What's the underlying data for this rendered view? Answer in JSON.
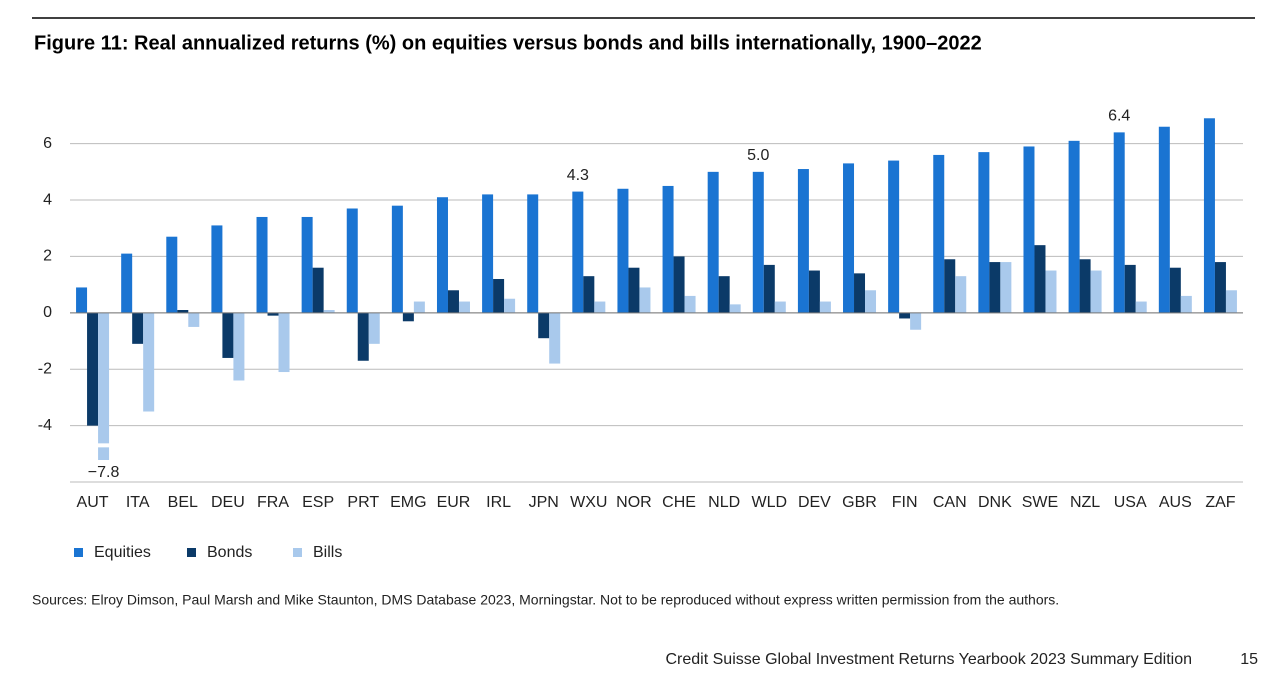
{
  "chart_data": {
    "type": "bar",
    "title": "Figure 11: Real annualized returns (%) on equities versus bonds and bills internationally, 1900–2022",
    "categories": [
      "AUT",
      "ITA",
      "BEL",
      "DEU",
      "FRA",
      "ESP",
      "PRT",
      "EMG",
      "EUR",
      "IRL",
      "JPN",
      "WXU",
      "NOR",
      "CHE",
      "NLD",
      "WLD",
      "DEV",
      "GBR",
      "FIN",
      "CAN",
      "DNK",
      "SWE",
      "NZL",
      "USA",
      "AUS",
      "ZAF"
    ],
    "series": [
      {
        "name": "Equities",
        "color": "#1a74d2",
        "values": [
          0.9,
          2.1,
          2.7,
          3.1,
          3.4,
          3.4,
          3.7,
          3.8,
          4.1,
          4.2,
          4.2,
          4.3,
          4.4,
          4.5,
          5.0,
          5.0,
          5.1,
          5.3,
          5.4,
          5.6,
          5.7,
          5.9,
          6.1,
          6.4,
          6.6,
          6.9
        ],
        "value_labels": [
          null,
          null,
          null,
          null,
          null,
          null,
          null,
          null,
          null,
          null,
          null,
          "4.3",
          null,
          null,
          null,
          "5.0",
          null,
          null,
          null,
          null,
          null,
          null,
          null,
          "6.4",
          null,
          null
        ]
      },
      {
        "name": "Bonds",
        "color": "#0b3a68",
        "values": [
          -4.0,
          -1.1,
          0.1,
          -1.6,
          -0.1,
          1.6,
          -1.7,
          -0.3,
          0.8,
          1.2,
          -0.9,
          1.3,
          1.6,
          2.0,
          1.3,
          1.7,
          1.5,
          1.4,
          -0.2,
          1.9,
          1.8,
          2.4,
          1.9,
          1.7,
          1.6,
          1.8
        ]
      },
      {
        "name": "Bills",
        "color": "#a9c9ec",
        "values": [
          -7.8,
          -3.5,
          -0.5,
          -2.4,
          -2.1,
          0.1,
          -1.1,
          0.4,
          0.4,
          0.5,
          -1.8,
          0.4,
          0.9,
          0.6,
          0.3,
          0.4,
          0.4,
          0.8,
          -0.6,
          1.3,
          1.8,
          1.5,
          1.5,
          0.4,
          0.6,
          0.8
        ],
        "value_labels": [
          "−7.8",
          null,
          null,
          null,
          null,
          null,
          null,
          null,
          null,
          null,
          null,
          null,
          null,
          null,
          null,
          null,
          null,
          null,
          null,
          null,
          null,
          null,
          null,
          null,
          null,
          null
        ]
      }
    ],
    "ylim": [
      -6,
      7.3
    ],
    "yticks": [
      -4,
      -2,
      0,
      2,
      4,
      6
    ],
    "grid": true,
    "legend": "bottom-left",
    "source": "Sources: Elroy Dimson, Paul Marsh and Mike Staunton, DMS Database 2023, Morningstar. Not to be reproduced without express written permission from the authors."
  },
  "footer": {
    "text": "Credit Suisse Global Investment Returns Yearbook 2023 Summary Edition",
    "page": "15"
  }
}
